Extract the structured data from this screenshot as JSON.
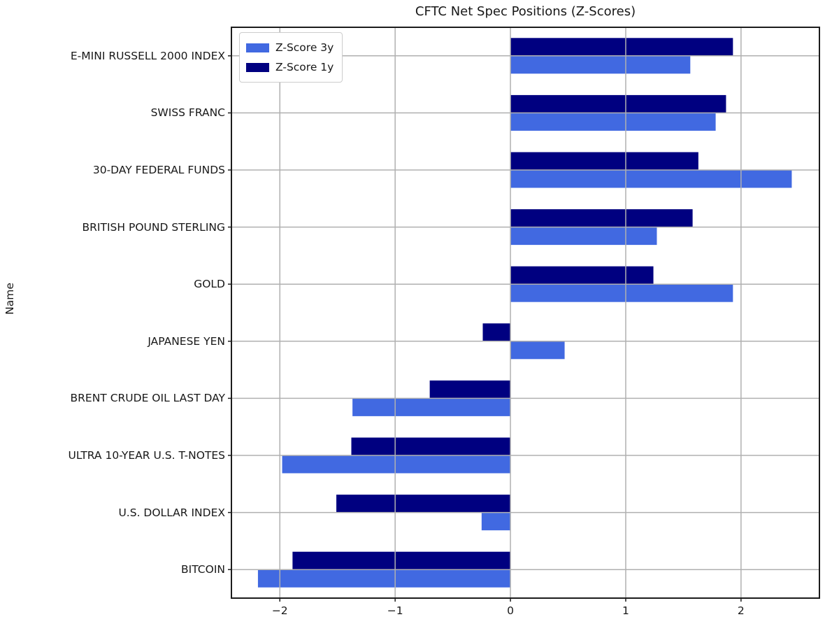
{
  "chart_data": {
    "type": "bar",
    "orientation": "horizontal",
    "title": "CFTC Net Spec Positions (Z-Scores)",
    "xlabel": "",
    "ylabel": "Name",
    "categories": [
      "E-MINI RUSSELL 2000 INDEX",
      "SWISS FRANC",
      "30-DAY FEDERAL FUNDS",
      "BRITISH POUND STERLING",
      "GOLD",
      "JAPANESE YEN",
      "BRENT CRUDE OIL LAST DAY",
      "ULTRA 10-YEAR U.S. T-NOTES",
      "U.S. DOLLAR INDEX",
      "BITCOIN"
    ],
    "series": [
      {
        "name": "Z-Score 3y",
        "color": "#4169E1",
        "values": [
          1.56,
          1.78,
          2.44,
          1.27,
          1.93,
          0.47,
          -1.37,
          -1.98,
          -0.25,
          -2.19
        ]
      },
      {
        "name": "Z-Score 1y",
        "color": "#000080",
        "values": [
          1.93,
          1.87,
          1.63,
          1.58,
          1.24,
          -0.24,
          -0.7,
          -1.38,
          -1.51,
          -1.89
        ]
      }
    ],
    "xlim": [
      -2.42,
      2.68
    ],
    "xticks": [
      -2,
      -1,
      0,
      1,
      2
    ],
    "xtick_labels": [
      "−2",
      "−1",
      "0",
      "1",
      "2"
    ],
    "grid": true,
    "legend_position": "upper left",
    "colors": {
      "grid": "#b0b0b0",
      "spine": "#1c1c1c",
      "background": "#ffffff"
    }
  }
}
